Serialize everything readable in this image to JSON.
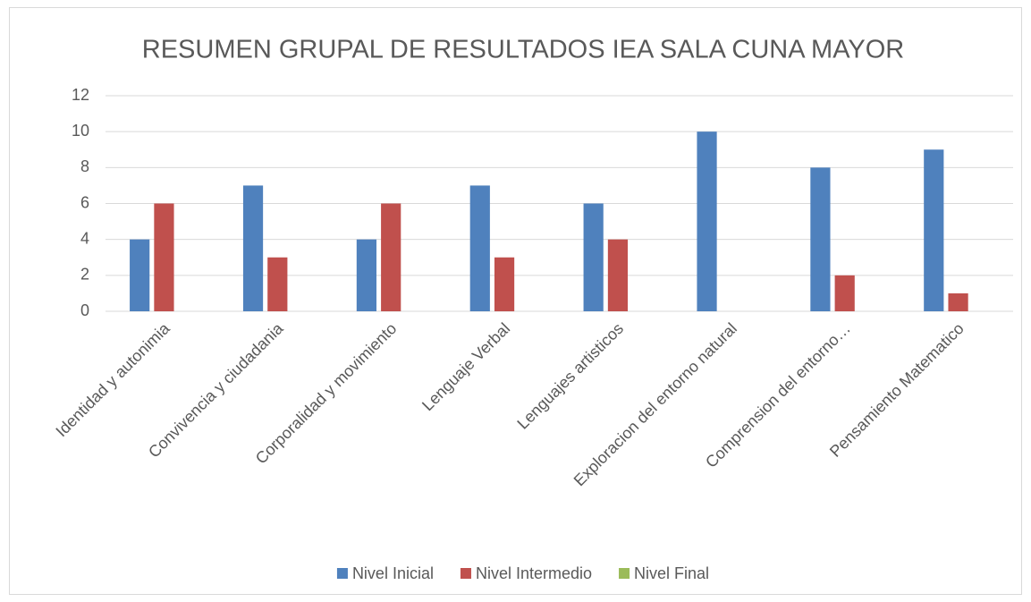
{
  "chart_data": {
    "type": "bar",
    "title": "RESUMEN GRUPAL DE RESULTADOS IEA SALA CUNA MAYOR",
    "categories": [
      "Identidad y autonimia",
      "Convivencia y ciudadania",
      "Corporalidad y movimiento",
      "Lenguaje Verbal",
      "Lenguajes artisticos",
      "Exploracion del entorno natural",
      "Comprension del entorno…",
      "Pensamiento Matematico"
    ],
    "series": [
      {
        "name": "Nivel Inicial",
        "color": "#4f81bd",
        "values": [
          4,
          7,
          4,
          7,
          6,
          10,
          8,
          9
        ]
      },
      {
        "name": "Nivel Intermedio",
        "color": "#c0504d",
        "values": [
          6,
          3,
          6,
          3,
          4,
          0,
          2,
          1
        ]
      },
      {
        "name": "Nivel Final",
        "color": "#9bbb59",
        "values": [
          0,
          0,
          0,
          0,
          0,
          0,
          0,
          0
        ]
      }
    ],
    "ylim": [
      0,
      12
    ],
    "yticks": [
      0,
      2,
      4,
      6,
      8,
      10,
      12
    ],
    "grid": true,
    "legend": "bottom"
  }
}
